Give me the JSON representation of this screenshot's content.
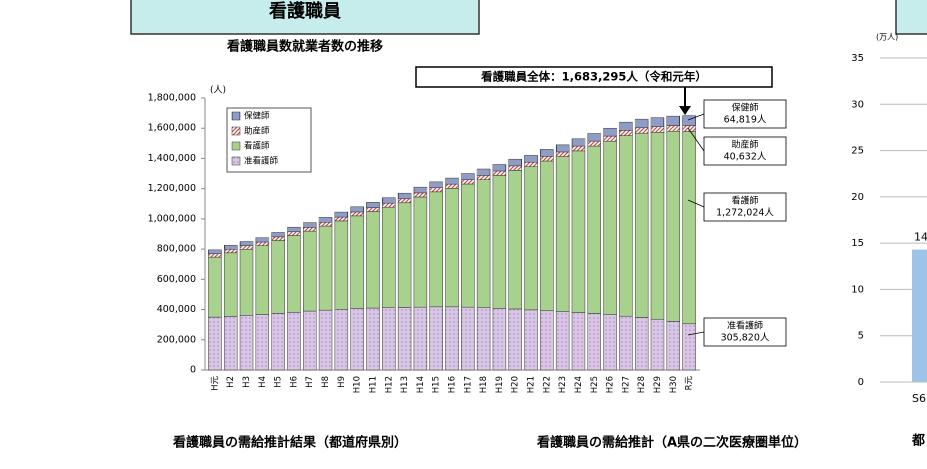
{
  "header": {
    "title": "看護職員"
  },
  "bottom": {
    "left": "看護職員の需給推計結果（都道府県別）",
    "right": "看護職員の需給推計（A県の二次医療圏単位）",
    "edge": "都"
  },
  "chart_data": [
    {
      "type": "stacked-bar",
      "title": "看護職員数就業者数の推移",
      "ylabel": "(人)",
      "total_label": "看護職員全体：1,683,295人（令和元年）",
      "categories": [
        "H元",
        "H2",
        "H3",
        "H4",
        "H5",
        "H6",
        "H7",
        "H8",
        "H9",
        "H10",
        "H11",
        "H12",
        "H13",
        "H14",
        "H15",
        "H16",
        "H17",
        "H18",
        "H19",
        "H20",
        "H21",
        "H22",
        "H23",
        "H24",
        "H25",
        "H26",
        "H27",
        "H28",
        "H29",
        "H30",
        "R元"
      ],
      "series": [
        {
          "name": "准看護師",
          "color": "#d9c6e6",
          "pattern": "dots",
          "values": [
            350000,
            355000,
            362000,
            368000,
            375000,
            382000,
            390000,
            396000,
            402000,
            408000,
            410000,
            412000,
            414000,
            416000,
            418000,
            418000,
            416000,
            412000,
            408000,
            404000,
            398000,
            392000,
            386000,
            380000,
            374000,
            366000,
            356000,
            348000,
            336000,
            322000,
            305820
          ]
        },
        {
          "name": "看護師",
          "color": "#a9d18e",
          "pattern": "solid",
          "values": [
            397000,
            420500,
            437000,
            454500,
            481500,
            508000,
            529000,
            556500,
            584500,
            612000,
            639000,
            665500,
            692500,
            729000,
            761000,
            784000,
            815000,
            847000,
            880000,
            917000,
            947000,
            991000,
            1026000,
            1070000,
            1108000,
            1148000,
            1195000,
            1219000,
            1237000,
            1258000,
            1272024
          ]
        },
        {
          "name": "助産師",
          "color": "#c0504d",
          "pattern": "hatch",
          "values": [
            23000,
            23500,
            24000,
            24500,
            24500,
            25000,
            25000,
            25500,
            25500,
            26000,
            26000,
            26500,
            26500,
            27000,
            27000,
            28000,
            28000,
            29000,
            29000,
            30000,
            30000,
            31000,
            31000,
            32000,
            33000,
            34000,
            35000,
            36000,
            37000,
            38000,
            40632
          ]
        },
        {
          "name": "保健師",
          "color": "#1f3b8c",
          "pattern": "vstripe",
          "values": [
            25000,
            26000,
            27000,
            28000,
            29000,
            30000,
            31000,
            32000,
            33000,
            34000,
            35000,
            36000,
            37000,
            38000,
            39000,
            40000,
            41000,
            42000,
            43000,
            44000,
            45000,
            46000,
            47000,
            48000,
            50000,
            52000,
            54000,
            57000,
            60000,
            62000,
            64819
          ]
        }
      ],
      "callouts": [
        {
          "title": "保健師",
          "text": "64,819人"
        },
        {
          "title": "助産師",
          "text": "40,632人"
        },
        {
          "title": "看護師",
          "text": "1,272,024人"
        },
        {
          "title": "准看護師",
          "text": "305,820人"
        }
      ],
      "ylim": [
        0,
        1800000
      ],
      "yticks": [
        0,
        {
          "value": 200000,
          "label": "200,000"
        },
        {
          "value": 400000,
          "label": "400,000"
        },
        {
          "value": 600000,
          "label": "600,000"
        },
        {
          "value": 800000,
          "label": "800,000"
        },
        {
          "value": 1000000,
          "label": "1,000,000"
        },
        {
          "value": 1200000,
          "label": "1,200,000"
        },
        {
          "value": 1400000,
          "label": "1,400,000"
        },
        {
          "value": 1600000,
          "label": "1,600,000"
        },
        {
          "value": 1800000,
          "label": "1,800,000"
        }
      ],
      "legend": "top-left"
    },
    {
      "type": "bar",
      "ylabel": "(万人)",
      "categories": [
        "S6"
      ],
      "values": [
        14.3
      ],
      "value_labels": [
        "14"
      ],
      "color": "#9dc3e6",
      "ylim": [
        0,
        35
      ],
      "yticks": [
        0,
        5,
        10,
        15,
        20,
        25,
        30,
        35
      ],
      "grid": true
    }
  ]
}
